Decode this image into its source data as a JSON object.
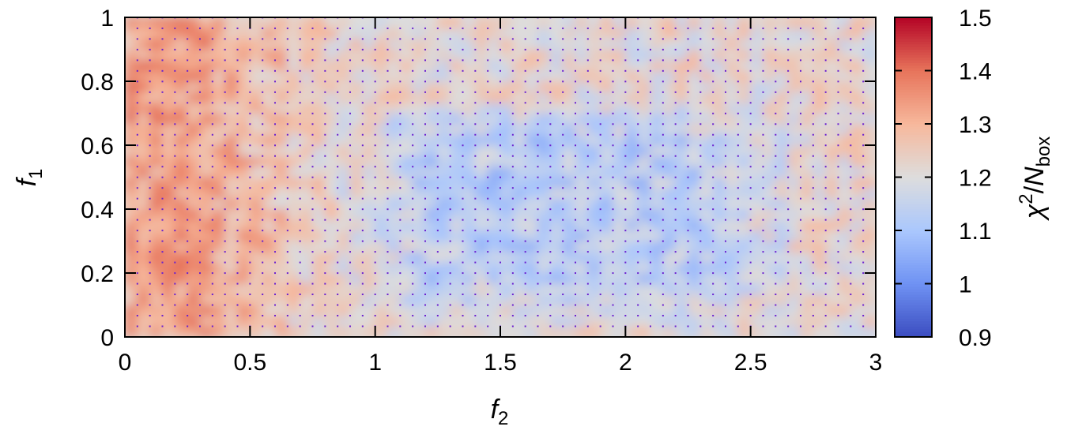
{
  "chart_data": {
    "type": "heatmap",
    "title": "",
    "xlabel": {
      "var": "f",
      "sub": "2"
    },
    "ylabel": {
      "var": "f",
      "sub": "1"
    },
    "colorbar_label": {
      "base": "χ",
      "sup": "2",
      "slash": "/",
      "var": "N",
      "sub": "box"
    },
    "xlim": [
      0,
      3
    ],
    "ylim": [
      0,
      1
    ],
    "clim": [
      0.9,
      1.5
    ],
    "x_ticks": [
      0,
      0.5,
      1,
      1.5,
      2,
      2.5,
      3
    ],
    "x_tick_labels": [
      "0",
      "0.5",
      "1",
      "1.5",
      "2",
      "2.5",
      "3"
    ],
    "y_ticks": [
      0,
      0.2,
      0.4,
      0.6,
      0.8,
      1
    ],
    "y_tick_labels": [
      "0",
      "0.2",
      "0.4",
      "0.6",
      "0.8",
      "1"
    ],
    "c_ticks": [
      0.9,
      1,
      1.1,
      1.2,
      1.3,
      1.4,
      1.5
    ],
    "c_tick_labels": [
      "0.9",
      "1",
      "1.1",
      "1.2",
      "1.3",
      "1.4",
      "1.5"
    ],
    "colormap": [
      "#3b4cc0",
      "#6f92f3",
      "#aac7fd",
      "#dddddd",
      "#f7b89c",
      "#e7745b",
      "#b40426"
    ],
    "grid_point_color": "#6a1fd0",
    "sample_x_step": 0.05,
    "sample_y_step": 0.0333,
    "region_means": [
      {
        "x": [
          0.0,
          0.5
        ],
        "y": [
          0.0,
          1.0
        ],
        "value": 1.33
      },
      {
        "x": [
          0.5,
          1.0
        ],
        "y": [
          0.0,
          1.0
        ],
        "value": 1.24
      },
      {
        "x": [
          1.0,
          2.5
        ],
        "y": [
          0.1,
          0.7
        ],
        "value": 1.13
      },
      {
        "x": [
          2.5,
          3.0
        ],
        "y": [
          0.0,
          1.0
        ],
        "value": 1.22
      }
    ]
  }
}
